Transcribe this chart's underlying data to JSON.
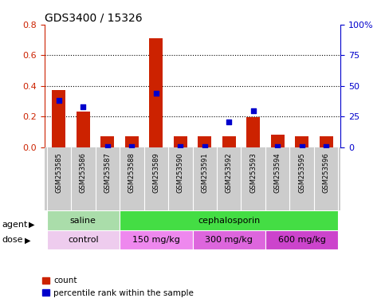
{
  "title": "GDS3400 / 15326",
  "categories": [
    "GSM253585",
    "GSM253586",
    "GSM253587",
    "GSM253588",
    "GSM253589",
    "GSM253590",
    "GSM253591",
    "GSM253592",
    "GSM253593",
    "GSM253594",
    "GSM253595",
    "GSM253596"
  ],
  "count_values": [
    0.375,
    0.235,
    0.075,
    0.075,
    0.71,
    0.075,
    0.075,
    0.075,
    0.195,
    0.085,
    0.075,
    0.075
  ],
  "percentile_values": [
    38.0,
    33.0,
    1.0,
    1.0,
    44.0,
    1.0,
    1.0,
    20.5,
    30.0,
    1.0,
    1.0,
    1.0
  ],
  "left_ylim": [
    0,
    0.8
  ],
  "right_ylim": [
    0,
    100
  ],
  "left_yticks": [
    0,
    0.2,
    0.4,
    0.6,
    0.8
  ],
  "right_yticks": [
    0,
    25,
    50,
    75,
    100
  ],
  "right_yticklabels": [
    "0",
    "25",
    "50",
    "75",
    "100%"
  ],
  "bar_color": "#cc2200",
  "scatter_color": "#0000cc",
  "agent_groups": [
    {
      "label": "saline",
      "start": 0,
      "end": 2,
      "color": "#aaddaa"
    },
    {
      "label": "cephalosporin",
      "start": 3,
      "end": 11,
      "color": "#44dd44"
    }
  ],
  "dose_groups": [
    {
      "label": "control",
      "start": 0,
      "end": 2,
      "color": "#eeccee"
    },
    {
      "label": "150 mg/kg",
      "start": 3,
      "end": 5,
      "color": "#ee88ee"
    },
    {
      "label": "300 mg/kg",
      "start": 6,
      "end": 8,
      "color": "#dd66dd"
    },
    {
      "label": "600 mg/kg",
      "start": 9,
      "end": 11,
      "color": "#cc44cc"
    }
  ],
  "legend_count_label": "count",
  "legend_pct_label": "percentile rank within the sample",
  "agent_label": "agent",
  "dose_label": "dose",
  "bar_width": 0.55,
  "xlabels_bg": "#cccccc",
  "plot_bg": "#ffffff",
  "grid_linestyle": ":",
  "grid_color": "#000000",
  "grid_linewidth": 0.8,
  "left_tick_color": "#cc2200",
  "right_tick_color": "#0000cc",
  "tick_fontsize": 8,
  "xlabel_fontsize": 6,
  "title_fontsize": 10,
  "label_fontsize": 8,
  "scatter_size": 18
}
